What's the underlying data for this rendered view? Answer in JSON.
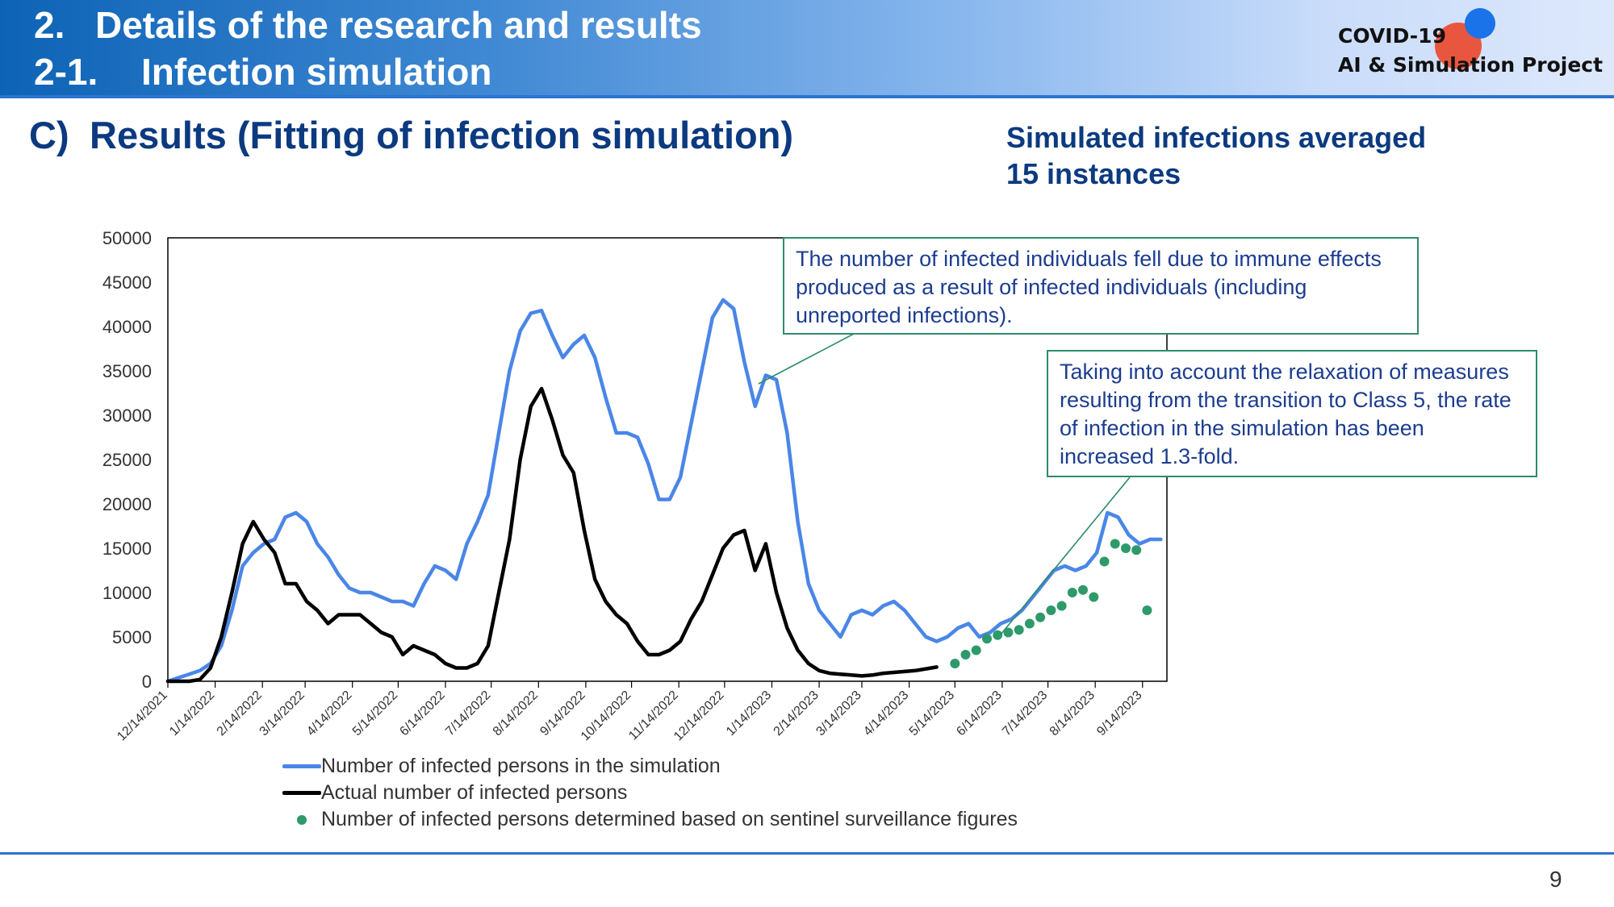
{
  "header": {
    "line1_num": "2.",
    "line1_text": "Details of the research and results",
    "line2_num": "2-1.",
    "line2_text": "Infection simulation",
    "logo_line1": "COVID-19",
    "logo_line2": "AI & Simulation Project"
  },
  "section": {
    "label": "C)",
    "title": "Results (Fitting of infection simulation)"
  },
  "note": {
    "line1": "Simulated infections averaged",
    "line2": "15 instances"
  },
  "callouts": [
    {
      "text": "The number of infected individuals fell due to immune effects produced as a result of infected individuals (including unreported infections)."
    },
    {
      "text": "Taking into account the relaxation of measures resulting from the transition to Class 5, the rate of infection in the simulation has been increased 1.3-fold."
    }
  ],
  "page_number": "9",
  "colors": {
    "simulation": "#4a86e8",
    "actual": "#000000",
    "sentinel": "#2e9a6a",
    "callout_border": "#2e8b6b"
  },
  "chart_data": {
    "type": "line",
    "x_start": "12/14/2021",
    "x_end": "9/30/2023",
    "ylim": [
      0,
      50000
    ],
    "yticks": [
      0,
      5000,
      10000,
      15000,
      20000,
      25000,
      30000,
      35000,
      40000,
      45000,
      50000
    ],
    "xtick_labels": [
      "12/14/2021",
      "1/14/2022",
      "2/14/2022",
      "3/14/2022",
      "4/14/2022",
      "5/14/2022",
      "6/14/2022",
      "7/14/2022",
      "8/14/2022",
      "9/14/2022",
      "10/14/2022",
      "11/14/2022",
      "12/14/2022",
      "1/14/2023",
      "2/14/2023",
      "3/14/2023",
      "4/14/2023",
      "5/14/2023",
      "6/14/2023",
      "7/14/2023",
      "8/14/2023",
      "9/14/2023"
    ],
    "legend": [
      "Number of infected persons in the simulation",
      "Actual number of infected persons",
      "Number of infected persons determined based on sentinel surveillance figures"
    ],
    "series": [
      {
        "name": "Number of infected persons in the simulation",
        "points": [
          [
            "12/14/2021",
            0
          ],
          [
            "12/21/2021",
            400
          ],
          [
            "12/28/2021",
            800
          ],
          [
            "1/4/2022",
            1200
          ],
          [
            "1/11/2022",
            2000
          ],
          [
            "1/18/2022",
            4000
          ],
          [
            "1/25/2022",
            8000
          ],
          [
            "2/1/2022",
            13000
          ],
          [
            "2/8/2022",
            14500
          ],
          [
            "2/15/2022",
            15500
          ],
          [
            "2/22/2022",
            16000
          ],
          [
            "3/1/2022",
            18500
          ],
          [
            "3/8/2022",
            19000
          ],
          [
            "3/15/2022",
            18000
          ],
          [
            "3/22/2022",
            15500
          ],
          [
            "3/29/2022",
            14000
          ],
          [
            "4/5/2022",
            12000
          ],
          [
            "4/12/2022",
            10500
          ],
          [
            "4/19/2022",
            10000
          ],
          [
            "4/26/2022",
            10000
          ],
          [
            "5/3/2022",
            9500
          ],
          [
            "5/10/2022",
            9000
          ],
          [
            "5/17/2022",
            9000
          ],
          [
            "5/24/2022",
            8500
          ],
          [
            "5/31/2022",
            11000
          ],
          [
            "6/7/2022",
            13000
          ],
          [
            "6/14/2022",
            12500
          ],
          [
            "6/21/2022",
            11500
          ],
          [
            "6/28/2022",
            15500
          ],
          [
            "7/5/2022",
            18000
          ],
          [
            "7/12/2022",
            21000
          ],
          [
            "7/19/2022",
            28000
          ],
          [
            "7/26/2022",
            35000
          ],
          [
            "8/2/2022",
            39500
          ],
          [
            "8/9/2022",
            41500
          ],
          [
            "8/16/2022",
            41800
          ],
          [
            "8/23/2022",
            39000
          ],
          [
            "8/30/2022",
            36500
          ],
          [
            "9/6/2022",
            38000
          ],
          [
            "9/13/2022",
            39000
          ],
          [
            "9/20/2022",
            36500
          ],
          [
            "9/27/2022",
            32000
          ],
          [
            "10/4/2022",
            28000
          ],
          [
            "10/11/2022",
            28000
          ],
          [
            "10/18/2022",
            27500
          ],
          [
            "10/25/2022",
            24500
          ],
          [
            "11/1/2022",
            20500
          ],
          [
            "11/8/2022",
            20500
          ],
          [
            "11/15/2022",
            23000
          ],
          [
            "11/22/2022",
            29000
          ],
          [
            "11/29/2022",
            35000
          ],
          [
            "12/6/2022",
            41000
          ],
          [
            "12/13/2022",
            43000
          ],
          [
            "12/20/2022",
            42000
          ],
          [
            "12/27/2022",
            36000
          ],
          [
            "1/3/2023",
            31000
          ],
          [
            "1/10/2023",
            34500
          ],
          [
            "1/17/2023",
            34000
          ],
          [
            "1/24/2023",
            28000
          ],
          [
            "1/31/2023",
            18000
          ],
          [
            "2/7/2023",
            11000
          ],
          [
            "2/14/2023",
            8000
          ],
          [
            "2/21/2023",
            6500
          ],
          [
            "2/28/2023",
            5000
          ],
          [
            "3/7/2023",
            7500
          ],
          [
            "3/14/2023",
            8000
          ],
          [
            "3/21/2023",
            7500
          ],
          [
            "3/28/2023",
            8500
          ],
          [
            "4/4/2023",
            9000
          ],
          [
            "4/11/2023",
            8000
          ],
          [
            "4/18/2023",
            6500
          ],
          [
            "4/25/2023",
            5000
          ],
          [
            "5/2/2023",
            4500
          ],
          [
            "5/9/2023",
            5000
          ],
          [
            "5/16/2023",
            6000
          ],
          [
            "5/23/2023",
            6500
          ],
          [
            "5/30/2023",
            5000
          ],
          [
            "6/6/2023",
            5500
          ],
          [
            "6/13/2023",
            6500
          ],
          [
            "6/20/2023",
            7000
          ],
          [
            "6/27/2023",
            8000
          ],
          [
            "7/4/2023",
            9500
          ],
          [
            "7/11/2023",
            11000
          ],
          [
            "7/18/2023",
            12500
          ],
          [
            "7/25/2023",
            13000
          ],
          [
            "8/1/2023",
            12500
          ],
          [
            "8/8/2023",
            13000
          ],
          [
            "8/15/2023",
            14500
          ],
          [
            "8/22/2023",
            19000
          ],
          [
            "8/29/2023",
            18500
          ],
          [
            "9/5/2023",
            16500
          ],
          [
            "9/12/2023",
            15500
          ],
          [
            "9/19/2023",
            16000
          ],
          [
            "9/26/2023",
            16000
          ]
        ]
      },
      {
        "name": "Actual number of infected persons",
        "points": [
          [
            "12/14/2021",
            0
          ],
          [
            "12/28/2021",
            0
          ],
          [
            "1/4/2022",
            200
          ],
          [
            "1/11/2022",
            1500
          ],
          [
            "1/18/2022",
            5000
          ],
          [
            "1/25/2022",
            10000
          ],
          [
            "2/1/2022",
            15500
          ],
          [
            "2/8/2022",
            18000
          ],
          [
            "2/15/2022",
            16000
          ],
          [
            "2/22/2022",
            14500
          ],
          [
            "3/1/2022",
            11000
          ],
          [
            "3/8/2022",
            11000
          ],
          [
            "3/15/2022",
            9000
          ],
          [
            "3/22/2022",
            8000
          ],
          [
            "3/29/2022",
            6500
          ],
          [
            "4/5/2022",
            7500
          ],
          [
            "4/12/2022",
            7500
          ],
          [
            "4/19/2022",
            7500
          ],
          [
            "4/26/2022",
            6500
          ],
          [
            "5/3/2022",
            5500
          ],
          [
            "5/10/2022",
            5000
          ],
          [
            "5/17/2022",
            3000
          ],
          [
            "5/24/2022",
            4000
          ],
          [
            "5/31/2022",
            3500
          ],
          [
            "6/7/2022",
            3000
          ],
          [
            "6/14/2022",
            2000
          ],
          [
            "6/21/2022",
            1500
          ],
          [
            "6/28/2022",
            1500
          ],
          [
            "7/5/2022",
            2000
          ],
          [
            "7/12/2022",
            4000
          ],
          [
            "7/19/2022",
            10000
          ],
          [
            "7/26/2022",
            16000
          ],
          [
            "8/2/2022",
            25000
          ],
          [
            "8/9/2022",
            31000
          ],
          [
            "8/16/2022",
            33000
          ],
          [
            "8/23/2022",
            29500
          ],
          [
            "8/30/2022",
            25500
          ],
          [
            "9/6/2022",
            23500
          ],
          [
            "9/13/2022",
            17000
          ],
          [
            "9/20/2022",
            11500
          ],
          [
            "9/27/2022",
            9000
          ],
          [
            "10/4/2022",
            7500
          ],
          [
            "10/11/2022",
            6500
          ],
          [
            "10/18/2022",
            4500
          ],
          [
            "10/25/2022",
            3000
          ],
          [
            "11/1/2022",
            3000
          ],
          [
            "11/8/2022",
            3500
          ],
          [
            "11/15/2022",
            4500
          ],
          [
            "11/22/2022",
            7000
          ],
          [
            "11/29/2022",
            9000
          ],
          [
            "12/6/2022",
            12000
          ],
          [
            "12/13/2022",
            15000
          ],
          [
            "12/20/2022",
            16500
          ],
          [
            "12/27/2022",
            17000
          ],
          [
            "1/3/2023",
            12500
          ],
          [
            "1/10/2023",
            15500
          ],
          [
            "1/17/2023",
            10000
          ],
          [
            "1/24/2023",
            6000
          ],
          [
            "1/31/2023",
            3500
          ],
          [
            "2/7/2023",
            2000
          ],
          [
            "2/14/2023",
            1200
          ],
          [
            "2/21/2023",
            900
          ],
          [
            "2/28/2023",
            800
          ],
          [
            "3/7/2023",
            700
          ],
          [
            "3/14/2023",
            600
          ],
          [
            "3/21/2023",
            700
          ],
          [
            "3/28/2023",
            900
          ],
          [
            "4/4/2023",
            1000
          ],
          [
            "4/11/2023",
            1100
          ],
          [
            "4/18/2023",
            1200
          ],
          [
            "4/25/2023",
            1400
          ],
          [
            "5/2/2023",
            1600
          ]
        ]
      },
      {
        "name": "Number of infected persons determined based on sentinel surveillance figures",
        "points": [
          [
            "5/14/2023",
            2000
          ],
          [
            "5/21/2023",
            3000
          ],
          [
            "5/28/2023",
            3500
          ],
          [
            "6/4/2023",
            4800
          ],
          [
            "6/11/2023",
            5200
          ],
          [
            "6/18/2023",
            5500
          ],
          [
            "6/25/2023",
            5800
          ],
          [
            "7/2/2023",
            6500
          ],
          [
            "7/9/2023",
            7200
          ],
          [
            "7/16/2023",
            8000
          ],
          [
            "7/23/2023",
            8500
          ],
          [
            "7/30/2023",
            10000
          ],
          [
            "8/6/2023",
            10300
          ],
          [
            "8/13/2023",
            9500
          ],
          [
            "8/20/2023",
            13500
          ],
          [
            "8/27/2023",
            15500
          ],
          [
            "9/3/2023",
            15000
          ],
          [
            "9/10/2023",
            14800
          ],
          [
            "9/17/2023",
            8000
          ]
        ]
      }
    ]
  }
}
